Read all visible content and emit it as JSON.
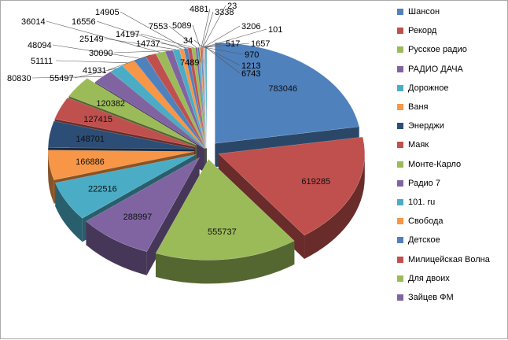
{
  "chart_data": {
    "type": "pie",
    "title": "",
    "legend_position": "right",
    "slices": [
      {
        "label": "Шансон",
        "value": 783046,
        "color": "#4f81bd"
      },
      {
        "label": "Рекорд",
        "value": 619285,
        "color": "#c0504d"
      },
      {
        "label": "Русское радио",
        "value": 555737,
        "color": "#9bbb59"
      },
      {
        "label": "РАДИО ДАЧА",
        "value": 288997,
        "color": "#8064a2"
      },
      {
        "label": "Дорожное",
        "value": 222516,
        "color": "#4bacc6"
      },
      {
        "label": "Ваня",
        "value": 166886,
        "color": "#f79646"
      },
      {
        "label": "Энерджи",
        "value": 148701,
        "color": "#2c4d75"
      },
      {
        "label": "Маяк",
        "value": 127415,
        "color": "#c0504d"
      },
      {
        "label": "Монте-Карло",
        "value": 120382,
        "color": "#9bbb59"
      },
      {
        "label": "Радио 7",
        "value": 80830,
        "color": "#8064a2"
      },
      {
        "label": "101. ru",
        "value": 55497,
        "color": "#4bacc6"
      },
      {
        "label": "Свобода",
        "value": 51111,
        "color": "#f79646"
      },
      {
        "label": "Детское",
        "value": 48094,
        "color": "#4f81bd"
      },
      {
        "label": "Милицейская Волна",
        "value": 41931,
        "color": "#c0504d"
      },
      {
        "label": "Для двоих",
        "value": 36014,
        "color": "#9bbb59"
      },
      {
        "label": "Зайцев ФМ",
        "value": 30090,
        "color": "#8064a2"
      },
      {
        "label": "",
        "value": 25149,
        "color": "#4bacc6"
      },
      {
        "label": "",
        "value": 16556,
        "color": "#f79646"
      },
      {
        "label": "",
        "value": 14905,
        "color": "#4f81bd"
      },
      {
        "label": "",
        "value": 14737,
        "color": "#c0504d"
      },
      {
        "label": "",
        "value": 14197,
        "color": "#9bbb59"
      },
      {
        "label": "",
        "value": 7553,
        "color": "#8064a2"
      },
      {
        "label": "",
        "value": 7489,
        "color": "#4bacc6"
      },
      {
        "label": "",
        "value": 5089,
        "color": "#f79646"
      },
      {
        "label": "",
        "value": 4881,
        "color": "#4f81bd"
      },
      {
        "label": "",
        "value": 3338,
        "color": "#c0504d"
      },
      {
        "label": "",
        "value": 34,
        "color": "#9bbb59"
      },
      {
        "label": "",
        "value": 23,
        "color": "#8064a2"
      },
      {
        "label": "",
        "value": 3206,
        "color": "#4bacc6"
      },
      {
        "label": "",
        "value": 101,
        "color": "#f79646"
      },
      {
        "label": "",
        "value": 517,
        "color": "#4f81bd"
      },
      {
        "label": "",
        "value": 1657,
        "color": "#c0504d"
      },
      {
        "label": "",
        "value": 970,
        "color": "#9bbb59"
      },
      {
        "label": "",
        "value": 1213,
        "color": "#8064a2"
      },
      {
        "label": "",
        "value": 6743,
        "color": "#4bacc6"
      }
    ]
  }
}
